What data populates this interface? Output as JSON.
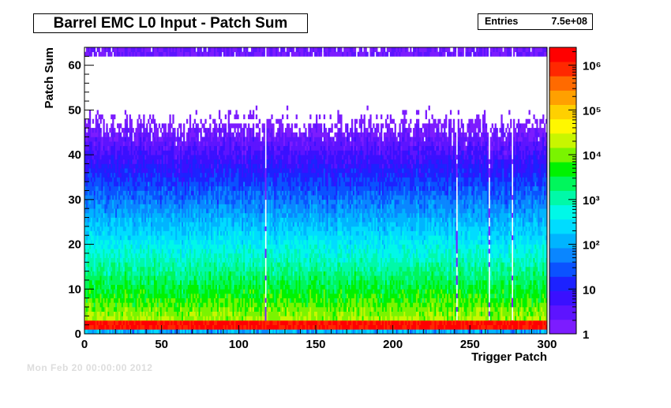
{
  "chart_data": {
    "type": "heatmap",
    "title": "Barrel EMC L0 Input - Patch Sum",
    "xlabel": "Trigger Patch",
    "ylabel": "Patch Sum",
    "xlim": [
      0,
      300
    ],
    "ylim": [
      0,
      64
    ],
    "x_ticks": [
      "0",
      "50",
      "100",
      "150",
      "200",
      "250",
      "300"
    ],
    "y_ticks": [
      "0",
      "10",
      "20",
      "30",
      "40",
      "50",
      "60"
    ],
    "z_scale": "log",
    "zlim": [
      1,
      2500000
    ],
    "z_ticks": [
      "1",
      "10",
      "10²",
      "10³",
      "10⁴",
      "10⁵",
      "10⁶"
    ],
    "stats": {
      "label": "Entries",
      "value": "7.5e+08"
    },
    "palette": [
      "#7c1cff",
      "#5d14ff",
      "#3a10ff",
      "#1c22ff",
      "#0b52ff",
      "#0a86ff",
      "#00b4ff",
      "#00dcff",
      "#00f8e8",
      "#00f9a8",
      "#00f65c",
      "#00f200",
      "#7af400",
      "#c8f600",
      "#fff700",
      "#ffd000",
      "#ffa000",
      "#ff6a00",
      "#ff2800",
      "#ff0000"
    ],
    "profile": {
      "hot_rows": [
        1,
        2
      ],
      "hot_max": 2000000,
      "decay_note": "counts fall from ~1e4 near sum 5 to ~1 above sum 45"
    },
    "dead_patches": [
      117,
      241,
      262,
      277
    ]
  },
  "footer": "Mon Feb 20 00:00:00 2012"
}
